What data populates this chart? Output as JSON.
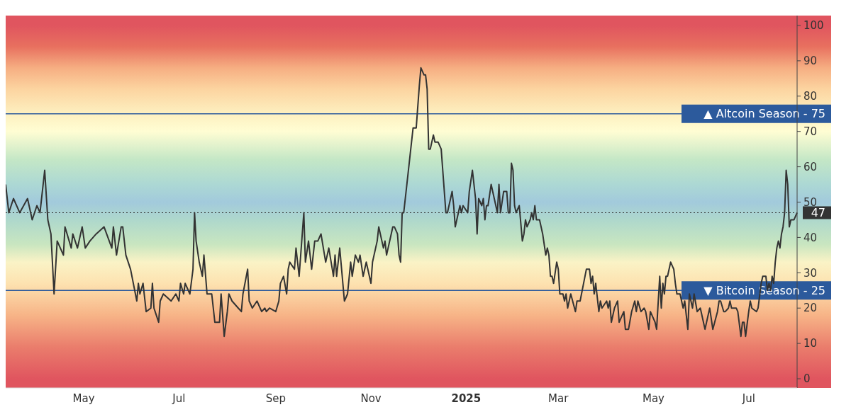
{
  "chart_data": {
    "type": "line",
    "x": [
      "2024-03-12",
      "2024-03-14",
      "2024-03-17",
      "2024-03-21",
      "2024-03-26",
      "2024-03-29",
      "2024-04-01",
      "2024-04-03",
      "2024-04-06",
      "2024-04-08",
      "2024-04-10",
      "2024-04-12",
      "2024-04-14",
      "2024-04-18",
      "2024-04-19",
      "2024-04-23",
      "2024-04-24",
      "2024-04-27",
      "2024-04-30",
      "2024-05-02",
      "2024-05-05",
      "2024-05-09",
      "2024-05-14",
      "2024-05-19",
      "2024-05-20",
      "2024-05-22",
      "2024-05-25",
      "2024-05-26",
      "2024-05-28",
      "2024-05-31",
      "2024-06-04",
      "2024-06-05",
      "2024-06-06",
      "2024-06-08",
      "2024-06-10",
      "2024-06-13",
      "2024-06-14",
      "2024-06-15",
      "2024-06-18",
      "2024-06-19",
      "2024-06-21",
      "2024-06-26",
      "2024-06-29",
      "2024-07-01",
      "2024-07-02",
      "2024-07-04",
      "2024-07-05",
      "2024-07-08",
      "2024-07-10",
      "2024-07-11",
      "2024-07-12",
      "2024-07-14",
      "2024-07-16",
      "2024-07-17",
      "2024-07-19",
      "2024-07-22",
      "2024-07-24",
      "2024-07-27",
      "2024-07-28",
      "2024-07-30",
      "2024-08-01",
      "2024-08-02",
      "2024-08-04",
      "2024-08-08",
      "2024-08-10",
      "2024-08-11",
      "2024-08-14",
      "2024-08-15",
      "2024-08-17",
      "2024-08-20",
      "2024-08-23",
      "2024-08-25",
      "2024-08-26",
      "2024-08-28",
      "2024-09-01",
      "2024-09-03",
      "2024-09-04",
      "2024-09-06",
      "2024-09-08",
      "2024-09-09",
      "2024-09-10",
      "2024-09-13",
      "2024-09-14",
      "2024-09-16",
      "2024-09-19",
      "2024-09-20",
      "2024-09-22",
      "2024-09-24",
      "2024-09-26",
      "2024-09-28",
      "2024-09-30",
      "2024-10-03",
      "2024-10-05",
      "2024-10-08",
      "2024-10-09",
      "2024-10-10",
      "2024-10-12",
      "2024-10-15",
      "2024-10-17",
      "2024-10-19",
      "2024-10-20",
      "2024-10-22",
      "2024-10-24",
      "2024-10-25",
      "2024-10-27",
      "2024-10-29",
      "2024-11-01",
      "2024-11-02",
      "2024-11-05",
      "2024-11-06",
      "2024-11-09",
      "2024-11-10",
      "2024-11-11",
      "2024-11-14",
      "2024-11-15",
      "2024-11-16",
      "2024-11-18",
      "2024-11-19",
      "2024-11-20",
      "2024-11-21",
      "2024-11-22",
      "2024-11-24",
      "2024-11-25",
      "2024-11-26",
      "2024-11-28",
      "2024-11-30",
      "2024-12-02",
      "2024-12-03",
      "2024-12-05",
      "2024-12-06",
      "2024-12-07",
      "2024-12-08",
      "2024-12-09",
      "2024-12-11",
      "2024-12-12",
      "2024-12-14",
      "2024-12-16",
      "2024-12-19",
      "2024-12-20",
      "2024-12-23",
      "2024-12-24",
      "2024-12-25",
      "2024-12-27",
      "2024-12-28",
      "2024-12-29",
      "2024-12-30",
      "2025-01-02",
      "2025-01-03",
      "2025-01-05",
      "2025-01-07",
      "2025-01-08",
      "2025-01-09",
      "2025-01-11",
      "2025-01-12",
      "2025-01-13",
      "2025-01-14",
      "2025-01-15",
      "2025-01-17",
      "2025-01-19",
      "2025-01-21",
      "2025-01-22",
      "2025-01-23",
      "2025-01-25",
      "2025-01-27",
      "2025-01-28",
      "2025-01-29",
      "2025-01-30",
      "2025-01-31",
      "2025-02-01",
      "2025-02-02",
      "2025-02-04",
      "2025-02-06",
      "2025-02-07",
      "2025-02-08",
      "2025-02-09",
      "2025-02-11",
      "2025-02-12",
      "2025-02-13",
      "2025-02-14",
      "2025-02-15",
      "2025-02-17",
      "2025-02-19",
      "2025-02-21",
      "2025-02-22",
      "2025-02-23",
      "2025-02-24",
      "2025-02-25",
      "2025-02-26",
      "2025-02-28",
      "2025-03-01",
      "2025-03-02",
      "2025-03-04",
      "2025-03-05",
      "2025-03-06",
      "2025-03-07",
      "2025-03-09",
      "2025-03-12",
      "2025-03-13",
      "2025-03-15",
      "2025-03-19",
      "2025-03-21",
      "2025-03-22",
      "2025-03-23",
      "2025-03-24",
      "2025-03-25",
      "2025-03-27",
      "2025-03-28",
      "2025-03-29",
      "2025-04-01",
      "2025-04-02",
      "2025-04-03",
      "2025-04-04",
      "2025-04-06",
      "2025-04-08",
      "2025-04-09",
      "2025-04-12",
      "2025-04-13",
      "2025-04-15",
      "2025-04-17",
      "2025-04-19",
      "2025-04-20",
      "2025-04-21",
      "2025-04-23",
      "2025-04-25",
      "2025-04-26",
      "2025-04-28",
      "2025-04-29",
      "2025-05-02",
      "2025-05-03",
      "2025-05-05",
      "2025-05-06",
      "2025-05-07",
      "2025-05-08",
      "2025-05-09",
      "2025-05-10",
      "2025-05-12",
      "2025-05-14",
      "2025-05-15",
      "2025-05-16",
      "2025-05-18",
      "2025-05-19",
      "2025-05-20",
      "2025-05-21",
      "2025-05-23",
      "2025-05-24",
      "2025-05-26",
      "2025-05-27",
      "2025-05-29",
      "2025-05-31",
      "2025-06-03",
      "2025-06-06",
      "2025-06-08",
      "2025-06-11",
      "2025-06-12",
      "2025-06-13",
      "2025-06-15",
      "2025-06-16",
      "2025-06-18",
      "2025-06-19",
      "2025-06-20",
      "2025-06-23",
      "2025-06-24",
      "2025-06-26",
      "2025-06-27",
      "2025-06-28",
      "2025-06-29",
      "2025-07-01",
      "2025-07-02",
      "2025-07-03",
      "2025-07-06",
      "2025-07-07",
      "2025-07-09",
      "2025-07-10",
      "2025-07-12",
      "2025-07-13",
      "2025-07-14",
      "2025-07-15",
      "2025-07-16",
      "2025-07-17",
      "2025-07-18",
      "2025-07-19",
      "2025-07-20",
      "2025-07-21",
      "2025-07-22",
      "2025-07-23",
      "2025-07-24",
      "2025-07-25",
      "2025-07-26",
      "2025-07-27",
      "2025-07-28",
      "2025-07-30",
      "2025-08-01"
    ],
    "series": [
      {
        "color": "#333333",
        "values": [
          55,
          47,
          51,
          47,
          51,
          45,
          49,
          47,
          59,
          45,
          41,
          24,
          39,
          35,
          43,
          37,
          41,
          37,
          43,
          37,
          39,
          41,
          43,
          37,
          43,
          35,
          43,
          43,
          35,
          31,
          22,
          27,
          24,
          27,
          19,
          20,
          27,
          20,
          16,
          22,
          24,
          22,
          24,
          22,
          27,
          24,
          27,
          24,
          31,
          47,
          39,
          33,
          29,
          35,
          24,
          24,
          16,
          16,
          24,
          12,
          19,
          24,
          22,
          20,
          19,
          24,
          31,
          22,
          20,
          22,
          19,
          20,
          19,
          20,
          19,
          22,
          27,
          29,
          24,
          31,
          33,
          31,
          37,
          29,
          47,
          33,
          39,
          31,
          39,
          39,
          41,
          33,
          37,
          29,
          35,
          29,
          37,
          22,
          24,
          33,
          29,
          35,
          33,
          35,
          29,
          33,
          27,
          33,
          39,
          43,
          37,
          39,
          35,
          41,
          43,
          43,
          41,
          35,
          33,
          47,
          47,
          55,
          59,
          63,
          71,
          71,
          83,
          88,
          86,
          86,
          82,
          65,
          65,
          69,
          67,
          67,
          65,
          47,
          47,
          53,
          49,
          43,
          47,
          49,
          47,
          49,
          47,
          53,
          59,
          51,
          41,
          51,
          49,
          51,
          45,
          49,
          49,
          55,
          51,
          47,
          55,
          47,
          53,
          53,
          47,
          47,
          61,
          59,
          49,
          47,
          49,
          39,
          41,
          45,
          43,
          45,
          47,
          45,
          49,
          45,
          45,
          41,
          35,
          37,
          35,
          29,
          29,
          27,
          33,
          31,
          24,
          24,
          22,
          24,
          20,
          24,
          19,
          22,
          22,
          31,
          31,
          27,
          29,
          24,
          27,
          19,
          22,
          20,
          22,
          20,
          22,
          16,
          20,
          22,
          16,
          19,
          14,
          14,
          19,
          22,
          19,
          22,
          19,
          20,
          19,
          14,
          19,
          16,
          14,
          29,
          20,
          27,
          24,
          29,
          29,
          33,
          31,
          27,
          24,
          24,
          22,
          20,
          22,
          14,
          24,
          20,
          24,
          19,
          20,
          14,
          20,
          14,
          19,
          22,
          22,
          19,
          19,
          20,
          22,
          20,
          20,
          19,
          12,
          16,
          16,
          12,
          19,
          22,
          20,
          19,
          20,
          27,
          29,
          29,
          25,
          27,
          25,
          29,
          27,
          33,
          37,
          39,
          37,
          41,
          43,
          47,
          59,
          55,
          43,
          45,
          45,
          47
        ]
      }
    ],
    "xlim": [
      "2024-03-12",
      "2025-08-01"
    ],
    "xticks": [
      {
        "value": "2024-05-01",
        "label": "May"
      },
      {
        "value": "2024-07-01",
        "label": "Jul"
      },
      {
        "value": "2024-09-01",
        "label": "Sep"
      },
      {
        "value": "2024-11-01",
        "label": "Nov"
      },
      {
        "value": "2025-01-01",
        "label": "2025"
      },
      {
        "value": "2025-03-01",
        "label": "Mar"
      },
      {
        "value": "2025-05-01",
        "label": "May"
      },
      {
        "value": "2025-07-01",
        "label": "Jul"
      }
    ],
    "ylim": [
      -2.6,
      102.8
    ],
    "yticks": [
      0,
      10,
      20,
      30,
      40,
      50,
      60,
      70,
      80,
      90,
      100
    ],
    "ref_lines": [
      {
        "axis": "y",
        "value": 75,
        "label": "▲ Altcoin Season - 75",
        "color": "#2c5a9c",
        "line_style": "solid"
      },
      {
        "axis": "y",
        "value": 25,
        "label": "▼ Bitcoin Season - 25",
        "color": "#2c5a9c",
        "line_style": "solid"
      },
      {
        "axis": "y",
        "value": 47,
        "label": "47",
        "color": "#333333",
        "line_style": "dotted"
      }
    ],
    "line_style": "solid",
    "marker": "none",
    "grid": false
  }
}
